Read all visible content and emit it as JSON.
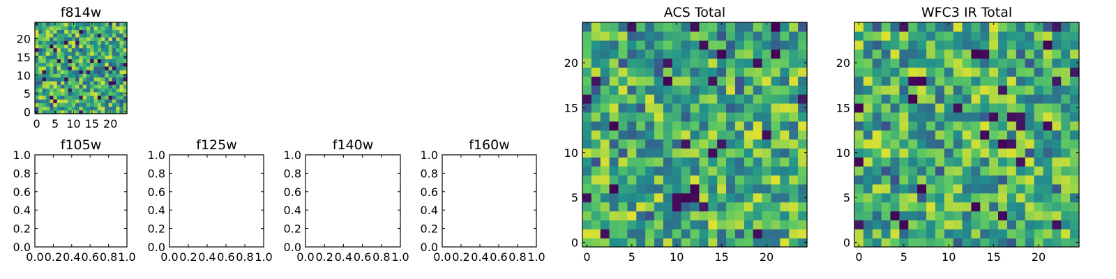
{
  "colormap": "viridis",
  "colormap_stops": [
    "#440154",
    "#3b528b",
    "#21918c",
    "#5ec962",
    "#fde725"
  ],
  "chart_data": [
    {
      "id": "f814w",
      "type": "heatmap",
      "title": "f814w",
      "grid_size": 25,
      "xlim": [
        -0.5,
        24.5
      ],
      "ylim": [
        -0.5,
        24.5
      ],
      "xticks": [
        0,
        5,
        10,
        15,
        20
      ],
      "yticks": [
        0,
        5,
        10,
        15,
        20
      ],
      "xtick_labels": [
        "0",
        "5",
        "10",
        "15",
        "20"
      ],
      "ytick_labels": [
        "0",
        "5",
        "10",
        "15",
        "20"
      ],
      "values_note": "25x25 noisy image, values mostly in the upper-middle of the colour scale",
      "seed": 814
    },
    {
      "id": "f105w",
      "type": "empty",
      "title": "f105w",
      "xlim": [
        0,
        1
      ],
      "ylim": [
        0,
        1
      ],
      "xticks": [
        0,
        0.2,
        0.4,
        0.6,
        0.8,
        1.0
      ],
      "yticks": [
        0,
        0.2,
        0.4,
        0.6,
        0.8,
        1.0
      ],
      "xtick_labels": [
        "0.0",
        "0.2",
        "0.4",
        "0.6",
        "0.8",
        "1.0"
      ],
      "ytick_labels": [
        "0.0",
        "0.2",
        "0.4",
        "0.6",
        "0.8",
        "1.0"
      ]
    },
    {
      "id": "f125w",
      "type": "empty",
      "title": "f125w",
      "xlim": [
        0,
        1
      ],
      "ylim": [
        0,
        1
      ],
      "xticks": [
        0,
        0.2,
        0.4,
        0.6,
        0.8,
        1.0
      ],
      "yticks": [
        0,
        0.2,
        0.4,
        0.6,
        0.8,
        1.0
      ],
      "xtick_labels": [
        "0.0",
        "0.2",
        "0.4",
        "0.6",
        "0.8",
        "1.0"
      ],
      "ytick_labels": [
        "0.0",
        "0.2",
        "0.4",
        "0.6",
        "0.8",
        "1.0"
      ]
    },
    {
      "id": "f140w",
      "type": "empty",
      "title": "f140w",
      "xlim": [
        0,
        1
      ],
      "ylim": [
        0,
        1
      ],
      "xticks": [
        0,
        0.2,
        0.4,
        0.6,
        0.8,
        1.0
      ],
      "yticks": [
        0,
        0.2,
        0.4,
        0.6,
        0.8,
        1.0
      ],
      "xtick_labels": [
        "0.0",
        "0.2",
        "0.4",
        "0.6",
        "0.8",
        "1.0"
      ],
      "ytick_labels": [
        "0.0",
        "0.2",
        "0.4",
        "0.6",
        "0.8",
        "1.0"
      ]
    },
    {
      "id": "f160w",
      "type": "empty",
      "title": "f160w",
      "xlim": [
        0,
        1
      ],
      "ylim": [
        0,
        1
      ],
      "xticks": [
        0,
        0.2,
        0.4,
        0.6,
        0.8,
        1.0
      ],
      "yticks": [
        0,
        0.2,
        0.4,
        0.6,
        0.8,
        1.0
      ],
      "xtick_labels": [
        "0.0",
        "0.2",
        "0.4",
        "0.6",
        "0.8",
        "1.0"
      ],
      "ytick_labels": [
        "0.0",
        "0.2",
        "0.4",
        "0.6",
        "0.8",
        "1.0"
      ]
    },
    {
      "id": "acs-total",
      "type": "heatmap",
      "title": "ACS Total",
      "grid_size": 25,
      "xlim": [
        -0.5,
        24.5
      ],
      "ylim": [
        -0.5,
        24.5
      ],
      "xticks": [
        0,
        5,
        10,
        15,
        20
      ],
      "yticks": [
        0,
        5,
        10,
        15,
        20
      ],
      "xtick_labels": [
        "0",
        "5",
        "10",
        "15",
        "20"
      ],
      "ytick_labels": [
        "0",
        "5",
        "10",
        "15",
        "20"
      ],
      "values_note": "25x25 noisy image, a few very low (dark) pixels",
      "seed": 1234
    },
    {
      "id": "wfc3-ir-total",
      "type": "heatmap",
      "title": "WFC3 IR Total",
      "grid_size": 25,
      "xlim": [
        -0.5,
        24.5
      ],
      "ylim": [
        -0.5,
        24.5
      ],
      "xticks": [
        0,
        5,
        10,
        15,
        20
      ],
      "yticks": [
        0,
        5,
        10,
        15,
        20
      ],
      "xtick_labels": [
        "0",
        "5",
        "10",
        "15",
        "20"
      ],
      "ytick_labels": [
        "0",
        "5",
        "10",
        "15",
        "20"
      ],
      "values_note": "25x25 noisy image, brighter (more yellow) on average",
      "seed": 4321
    }
  ]
}
